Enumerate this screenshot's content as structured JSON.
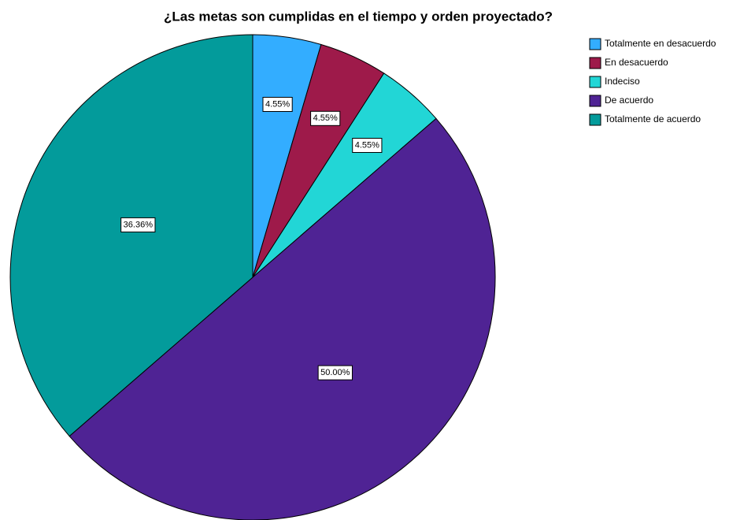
{
  "chart_data": {
    "type": "pie",
    "title": "¿Las metas son cumplidas en el tiempo y orden proyectado?",
    "categories": [
      "Totalmente en desacuerdo",
      "En desacuerdo",
      "Indeciso",
      "De acuerdo",
      "Totalmente de acuerdo"
    ],
    "values": [
      4.55,
      4.55,
      4.55,
      50.0,
      36.36
    ],
    "value_labels": [
      "4.55%",
      "4.55%",
      "4.55%",
      "50.00%",
      "36.36%"
    ],
    "colors": [
      "#33adff",
      "#9e1a4a",
      "#22d6d6",
      "#4f2394",
      "#039b9b"
    ],
    "legend": "top-right"
  }
}
